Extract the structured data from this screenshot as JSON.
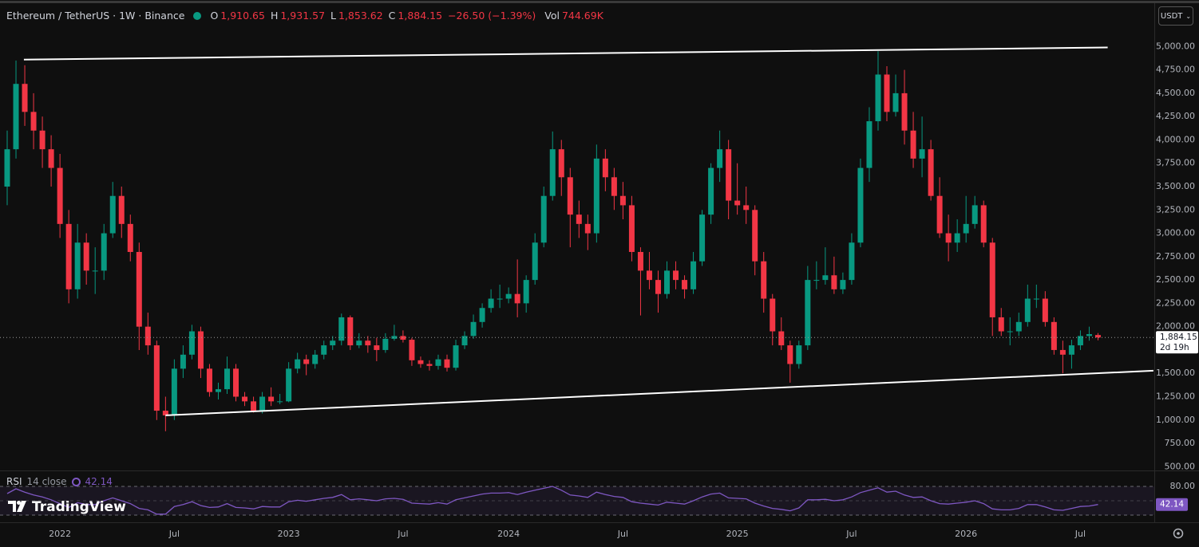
{
  "chart_data": {
    "type": "candlestick",
    "title": "Ethereum / TetherUS · 1W · Binance",
    "header": [
      {
        "key": "O",
        "label": "1,910.65"
      },
      {
        "key": "H",
        "label": "1,931.57"
      },
      {
        "key": "L",
        "label": "1,853.62"
      },
      {
        "key": "C",
        "label": "1,884.15"
      }
    ],
    "change": "−26.50 (−1.39%)",
    "volume_key": "Vol",
    "volume": "744.69K",
    "quote_currency": "USDT",
    "categories": [
      null,
      null,
      null,
      null,
      null,
      null,
      "2022",
      null,
      null,
      null,
      null,
      null,
      null,
      null,
      null,
      null,
      null,
      null,
      null,
      "Jul",
      null,
      null,
      null,
      null,
      null,
      null,
      null,
      null,
      null,
      null,
      null,
      null,
      "2023",
      null,
      null,
      null,
      null,
      null,
      null,
      null,
      null,
      null,
      null,
      null,
      null,
      "Jul",
      null,
      null,
      null,
      null,
      null,
      null,
      null,
      null,
      null,
      null,
      null,
      "2024",
      null,
      null,
      null,
      null,
      null,
      null,
      null,
      null,
      null,
      null,
      null,
      null,
      "Jul",
      null,
      null,
      null,
      null,
      null,
      null,
      null,
      null,
      null,
      null,
      null,
      null,
      "2025",
      null,
      null,
      null,
      null,
      null,
      null,
      null,
      null,
      null,
      null,
      null,
      null,
      "Jul",
      null,
      null,
      null,
      null,
      null,
      null,
      null,
      null,
      null,
      null,
      null,
      null,
      "2026",
      null,
      null,
      null,
      null,
      null,
      null,
      null,
      null,
      null,
      null,
      null,
      null,
      "Jul",
      null,
      null
    ],
    "open": [
      3500,
      3900,
      4600,
      4300,
      4100,
      3900,
      3700,
      3100,
      2400,
      2900,
      2600,
      2600,
      3000,
      3400,
      3100,
      2800,
      2000,
      1800,
      1100,
      1050,
      1550,
      1700,
      1950,
      1550,
      1300,
      1330,
      1550,
      1250,
      1200,
      1100,
      1250,
      1200,
      1200,
      1550,
      1650,
      1600,
      1700,
      1800,
      1850,
      2100,
      1800,
      1850,
      1800,
      1750,
      1870,
      1900,
      1860,
      1640,
      1600,
      1580,
      1650,
      1560,
      1800,
      1900,
      2050,
      2200,
      2300,
      2300,
      2350,
      2250,
      2500,
      2900,
      3400,
      3900,
      3600,
      3200,
      3100,
      3000,
      3800,
      3600,
      3400,
      3300,
      2800,
      2600,
      2500,
      2350,
      2600,
      2500,
      2400,
      2700,
      3200,
      3700,
      3900,
      3350,
      3300,
      3250,
      2700,
      2300,
      1950,
      1800,
      1600,
      1800,
      2500,
      2500,
      2550,
      2400,
      2500,
      2900,
      3700,
      4200,
      4700,
      4300,
      4500,
      4100,
      3800,
      3900,
      3400,
      3000,
      2900,
      3000,
      3100,
      3300,
      2900,
      2100,
      1950,
      1950,
      2050,
      2300,
      2300,
      2050,
      1750,
      1700,
      1800,
      1900,
      1910.65
    ],
    "high": [
      4100,
      4850,
      4800,
      4500,
      4250,
      4050,
      3850,
      3250,
      3100,
      3000,
      2850,
      3100,
      3550,
      3500,
      3200,
      2900,
      2150,
      1850,
      1250,
      1650,
      1800,
      2020,
      2000,
      1600,
      1400,
      1680,
      1600,
      1300,
      1250,
      1300,
      1350,
      1280,
      1620,
      1720,
      1700,
      1750,
      1850,
      1900,
      2140,
      2120,
      1930,
      1900,
      1880,
      1930,
      2020,
      1960,
      1880,
      1680,
      1640,
      1700,
      1700,
      1860,
      1950,
      2130,
      2250,
      2400,
      2450,
      2420,
      2720,
      2550,
      3000,
      3500,
      4090,
      4000,
      3700,
      3350,
      3200,
      3950,
      3900,
      3700,
      3550,
      3400,
      2850,
      2800,
      2600,
      2700,
      2700,
      2550,
      2800,
      3250,
      3750,
      4100,
      4000,
      3750,
      3500,
      3300,
      2800,
      2350,
      2100,
      1850,
      1850,
      2650,
      2700,
      2850,
      2750,
      2580,
      3000,
      3800,
      4350,
      4950,
      4790,
      4700,
      4750,
      4300,
      4250,
      4000,
      3600,
      3200,
      3150,
      3400,
      3400,
      3350,
      2950,
      2200,
      2100,
      2150,
      2450,
      2450,
      2380,
      2100,
      1850,
      1860,
      1960,
      2000,
      1931.57
    ],
    "low": [
      3300,
      3800,
      4150,
      3900,
      3700,
      3500,
      2950,
      2250,
      2300,
      2450,
      2350,
      2500,
      2950,
      2950,
      2700,
      1750,
      1700,
      1000,
      880,
      1000,
      1450,
      1650,
      1450,
      1250,
      1220,
      1280,
      1200,
      1150,
      1080,
      1070,
      1150,
      1170,
      1190,
      1500,
      1480,
      1550,
      1650,
      1750,
      1800,
      1750,
      1770,
      1720,
      1630,
      1720,
      1850,
      1830,
      1580,
      1560,
      1530,
      1540,
      1520,
      1530,
      1760,
      1870,
      1990,
      2150,
      2200,
      2250,
      2100,
      2150,
      2450,
      2850,
      3350,
      3400,
      2850,
      2950,
      2820,
      2900,
      3450,
      3250,
      3150,
      2700,
      2120,
      2400,
      2150,
      2300,
      2400,
      2300,
      2350,
      2650,
      3100,
      3550,
      3150,
      3200,
      3100,
      2550,
      2150,
      1800,
      1750,
      1400,
      1550,
      1750,
      2400,
      2450,
      2350,
      2350,
      2450,
      2850,
      3550,
      4100,
      4200,
      4250,
      3950,
      3700,
      3600,
      3350,
      2950,
      2700,
      2800,
      2900,
      3050,
      2850,
      1900,
      1900,
      1800,
      1900,
      2000,
      2200,
      2000,
      1700,
      1500,
      1550,
      1750,
      1850,
      1853.62
    ],
    "close": [
      3900,
      4600,
      4300,
      4100,
      3900,
      3700,
      3100,
      2400,
      2900,
      2600,
      2600,
      3000,
      3400,
      3100,
      2800,
      2000,
      1800,
      1100,
      1050,
      1550,
      1700,
      1950,
      1550,
      1300,
      1330,
      1550,
      1250,
      1200,
      1100,
      1250,
      1200,
      1200,
      1550,
      1650,
      1600,
      1700,
      1800,
      1850,
      2100,
      1800,
      1850,
      1800,
      1750,
      1870,
      1900,
      1860,
      1640,
      1600,
      1580,
      1650,
      1560,
      1800,
      1900,
      2050,
      2200,
      2300,
      2300,
      2350,
      2250,
      2500,
      2900,
      3400,
      3900,
      3600,
      3200,
      3100,
      3000,
      3800,
      3600,
      3400,
      3300,
      2800,
      2600,
      2500,
      2350,
      2600,
      2500,
      2400,
      2700,
      3200,
      3700,
      3900,
      3350,
      3300,
      3250,
      2700,
      2300,
      1950,
      1800,
      1600,
      1800,
      2500,
      2500,
      2550,
      2400,
      2500,
      2900,
      3700,
      4200,
      4700,
      4300,
      4500,
      4100,
      3800,
      3900,
      3400,
      3000,
      2900,
      3000,
      3100,
      3300,
      2900,
      2100,
      1950,
      1950,
      2050,
      2300,
      2300,
      2050,
      1750,
      1700,
      1800,
      1900,
      1920,
      1884.15
    ],
    "up_color": "#089981",
    "down_color": "#f23645",
    "ylim": [
      460,
      5430
    ],
    "yticks": [
      {
        "value": 500,
        "label": "500.00"
      },
      {
        "value": 750,
        "label": "750.00"
      },
      {
        "value": 1000,
        "label": "1,000.00"
      },
      {
        "value": 1250,
        "label": "1,250.00"
      },
      {
        "value": 1500,
        "label": "1,500.00"
      },
      {
        "value": 1750,
        "label": "1,750.00"
      },
      {
        "value": 2000,
        "label": "2,000.00"
      },
      {
        "value": 2250,
        "label": "2,250.00"
      },
      {
        "value": 2500,
        "label": "2,500.00"
      },
      {
        "value": 2750,
        "label": "2,750.00"
      },
      {
        "value": 3000,
        "label": "3,000.00"
      },
      {
        "value": 3250,
        "label": "3,250.00"
      },
      {
        "value": 3500,
        "label": "3,500.00"
      },
      {
        "value": 3750,
        "label": "3,750.00"
      },
      {
        "value": 4000,
        "label": "4,000.00"
      },
      {
        "value": 4250,
        "label": "4,250.00"
      },
      {
        "value": 4500,
        "label": "4,500.00"
      },
      {
        "value": 4750,
        "label": "4,750.00"
      },
      {
        "value": 5000,
        "label": "5,000.00"
      }
    ],
    "last_price_label": "1,884.15",
    "countdown": "2d 19h",
    "trendlines": [
      {
        "start": [
          1.9,
          4860
        ],
        "end": [
          125.1,
          4990
        ]
      },
      {
        "start": [
          18.0,
          1050
        ],
        "end": [
          130.3,
          1528
        ]
      }
    ],
    "trendline_color": "#ffffff",
    "rsi": {
      "title": "RSI",
      "params": "14 close",
      "current_label": "42.14",
      "color": "#7e57c2",
      "values": [
        65,
        75,
        68,
        62,
        58,
        52,
        44,
        36,
        46,
        42,
        42,
        50,
        56,
        50,
        44,
        34,
        31,
        22,
        22,
        38,
        42,
        48,
        40,
        36,
        37,
        44,
        36,
        35,
        33,
        38,
        37,
        37,
        48,
        51,
        49,
        52,
        55,
        57,
        63,
        52,
        54,
        52,
        50,
        54,
        55,
        53,
        45,
        44,
        43,
        46,
        43,
        52,
        56,
        60,
        64,
        66,
        66,
        67,
        63,
        68,
        72,
        76,
        80,
        72,
        62,
        60,
        57,
        68,
        63,
        59,
        57,
        48,
        45,
        43,
        41,
        47,
        45,
        43,
        50,
        58,
        64,
        66,
        56,
        55,
        54,
        45,
        39,
        34,
        32,
        29,
        35,
        52,
        52,
        53,
        50,
        52,
        58,
        67,
        72,
        77,
        68,
        70,
        62,
        57,
        58,
        50,
        44,
        43,
        45,
        47,
        50,
        44,
        33,
        31,
        31,
        34,
        42,
        42,
        37,
        31,
        30,
        34,
        38,
        39,
        42.14
      ],
      "ylim": [
        10,
        110
      ],
      "yticks": [
        {
          "value": 80,
          "label": "80.00"
        }
      ],
      "levels": [
        20,
        50,
        80
      ]
    },
    "watermark": "TradingView"
  }
}
